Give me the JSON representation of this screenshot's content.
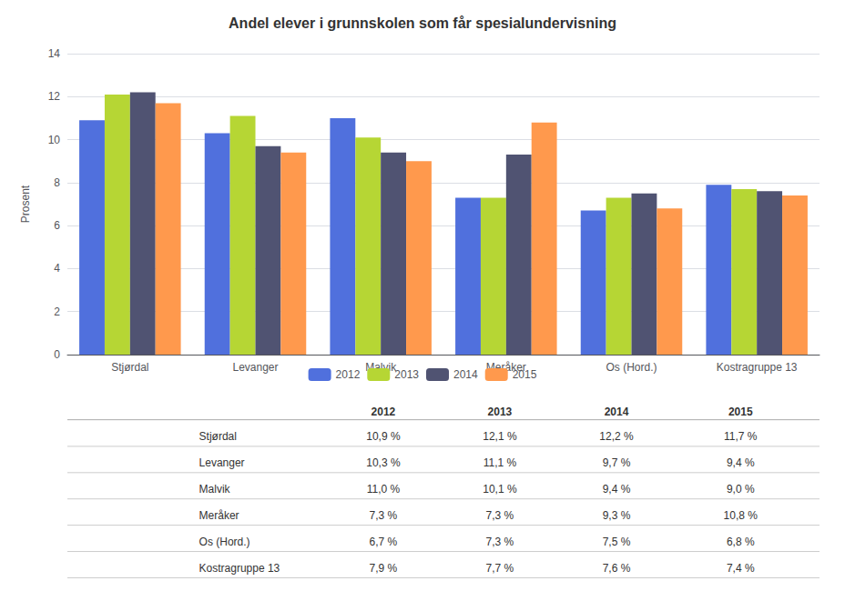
{
  "chart_data": {
    "type": "bar",
    "title": "Andel elever i grunnskolen som får spesialundervisning",
    "categories": [
      "Stjørdal",
      "Levanger",
      "Malvik",
      "Meråker",
      "Os (Hord.)",
      "Kostragruppe 13"
    ],
    "series": [
      {
        "name": "2012",
        "values": [
          10.9,
          10.3,
          11.0,
          7.3,
          6.7,
          7.9
        ],
        "value_labels": [
          "10,9 %",
          "10,3 %",
          "11,0 %",
          "7,3 %",
          "6,7 %",
          "7,9 %"
        ]
      },
      {
        "name": "2013",
        "values": [
          12.1,
          11.1,
          10.1,
          7.3,
          7.3,
          7.7
        ],
        "value_labels": [
          "12,1 %",
          "11,1 %",
          "10,1 %",
          "7,3 %",
          "7,3 %",
          "7,7 %"
        ]
      },
      {
        "name": "2014",
        "values": [
          12.2,
          9.7,
          9.4,
          9.3,
          7.5,
          7.6
        ],
        "value_labels": [
          "12,2 %",
          "9,7 %",
          "9,4 %",
          "9,3 %",
          "7,5 %",
          "7,6 %"
        ]
      },
      {
        "name": "2015",
        "values": [
          11.7,
          9.4,
          9.0,
          10.8,
          6.8,
          7.4
        ],
        "value_labels": [
          "11,7 %",
          "9,4 %",
          "9,0 %",
          "10,8 %",
          "6,8 %",
          "7,4 %"
        ]
      }
    ],
    "ylabel": "Prosent",
    "ylim": [
      0,
      14
    ],
    "yticks": [
      0,
      2,
      4,
      6,
      8,
      10,
      12,
      14
    ],
    "grid": true,
    "legend": "bottom"
  }
}
